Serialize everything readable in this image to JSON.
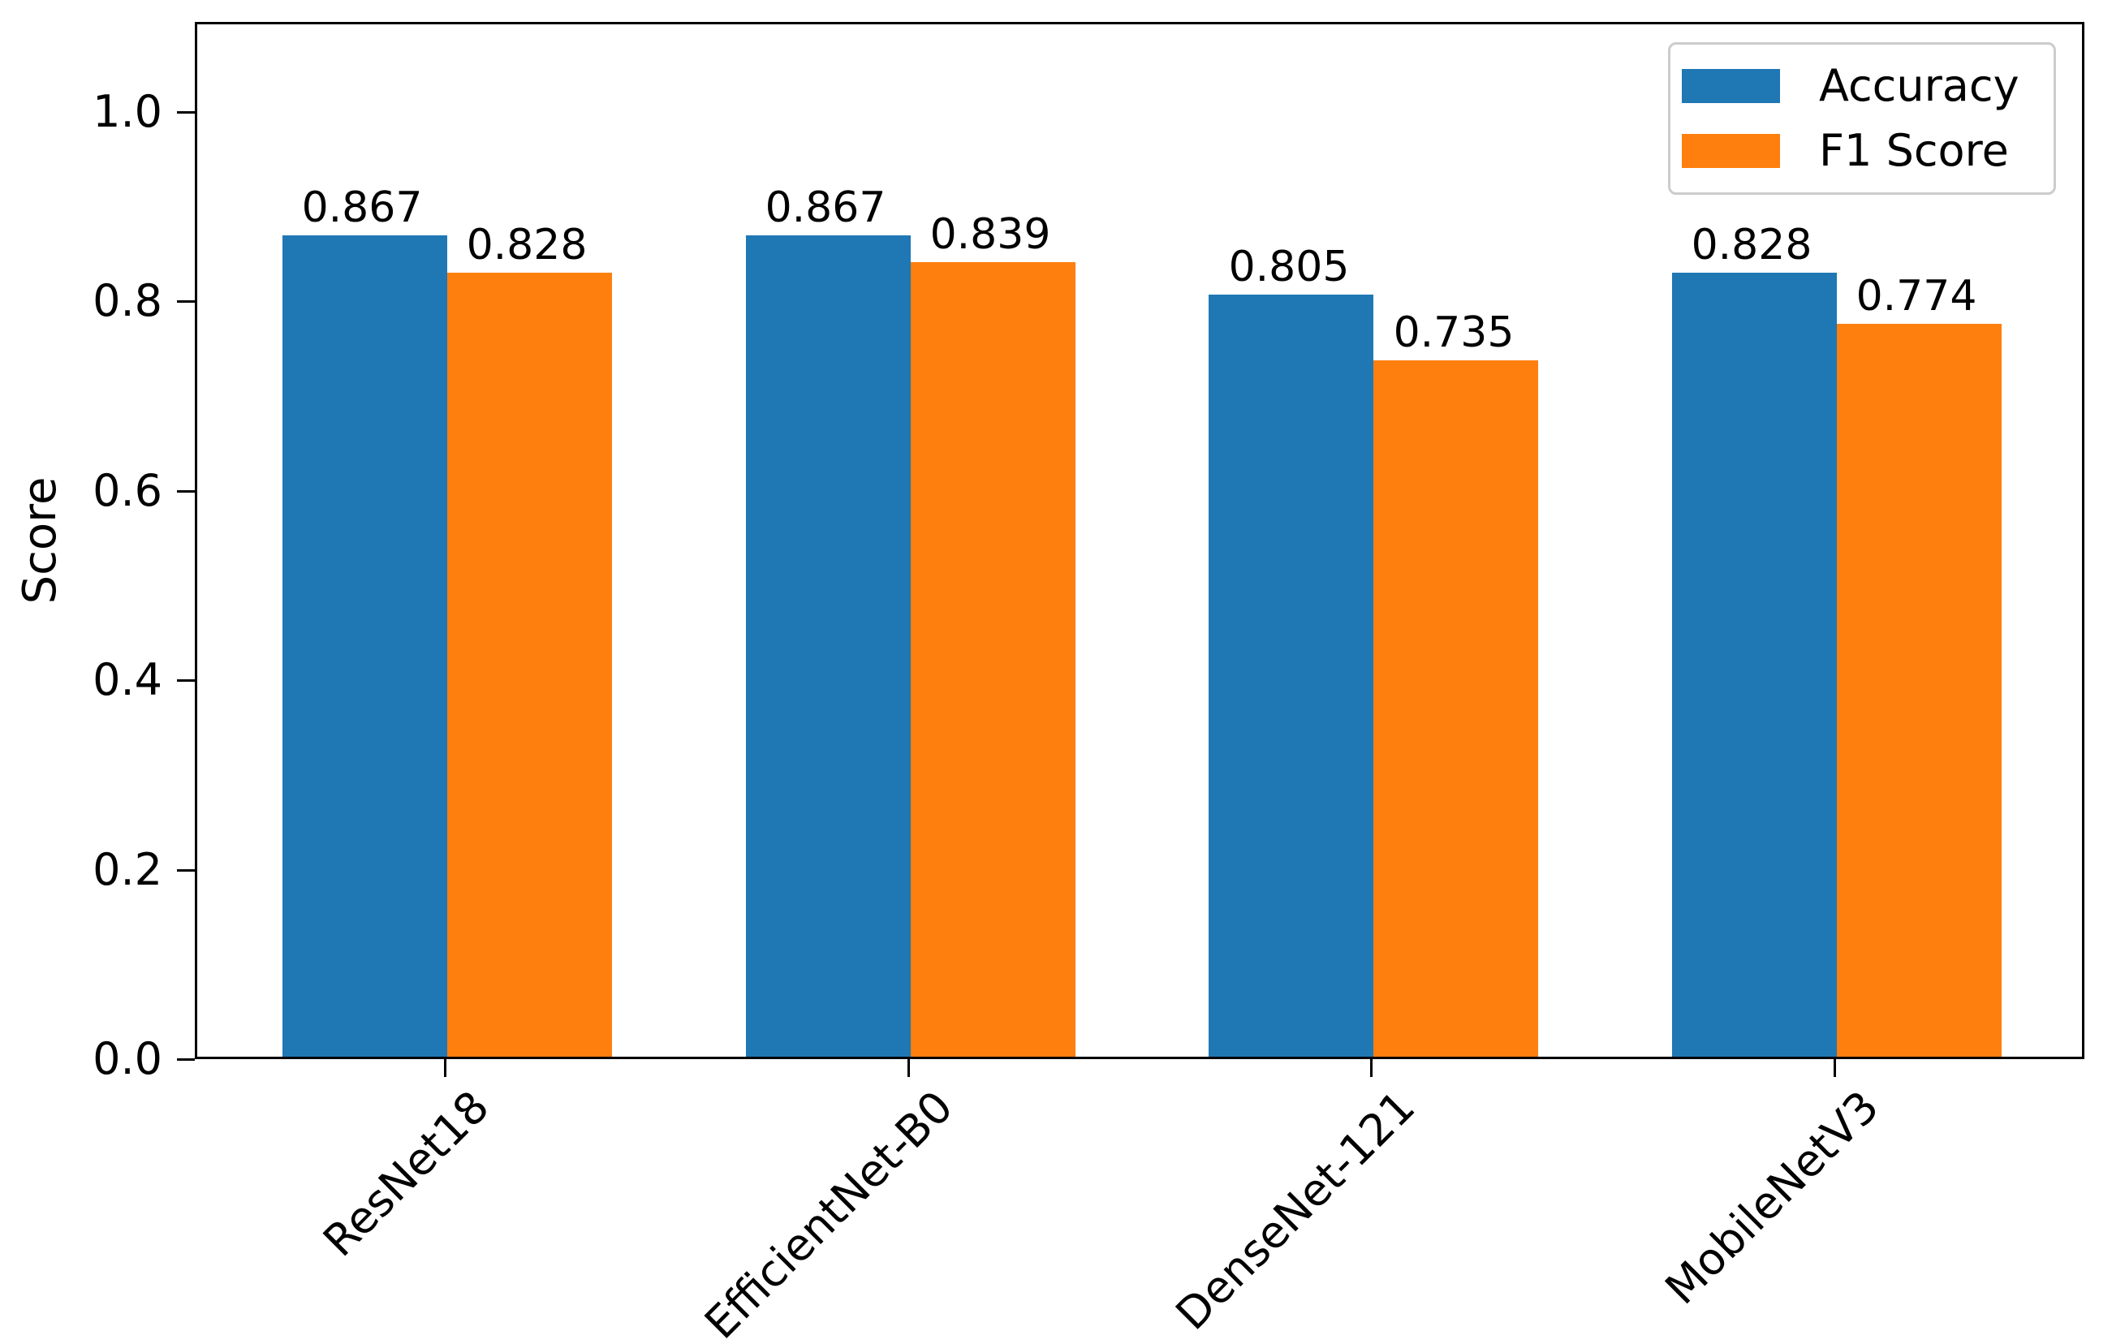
{
  "chart_data": {
    "type": "bar",
    "title": "",
    "categories": [
      "ResNet18",
      "EfficientNet-B0",
      "DenseNet-121",
      "MobileNetV3"
    ],
    "series": [
      {
        "name": "Accuracy",
        "color": "#1f77b4",
        "values": [
          0.867,
          0.867,
          0.805,
          0.828
        ]
      },
      {
        "name": "F1 Score",
        "color": "#ff7f0e",
        "values": [
          0.828,
          0.839,
          0.735,
          0.774
        ]
      }
    ],
    "value_labels": [
      [
        "0.867",
        "0.867",
        "0.805",
        "0.828"
      ],
      [
        "0.828",
        "0.839",
        "0.735",
        "0.774"
      ]
    ],
    "xlabel": "",
    "ylabel": "Score",
    "yticks": [
      "0.0",
      "0.2",
      "0.4",
      "0.6",
      "0.8",
      "1.0"
    ],
    "ytick_values": [
      0.0,
      0.2,
      0.4,
      0.6,
      0.8,
      1.0
    ],
    "ylim": [
      0,
      1.095
    ],
    "grid": false,
    "legend": {
      "position": "upper right",
      "entries": [
        "Accuracy",
        "F1 Score"
      ]
    },
    "xtick_rotation_deg": 45
  }
}
